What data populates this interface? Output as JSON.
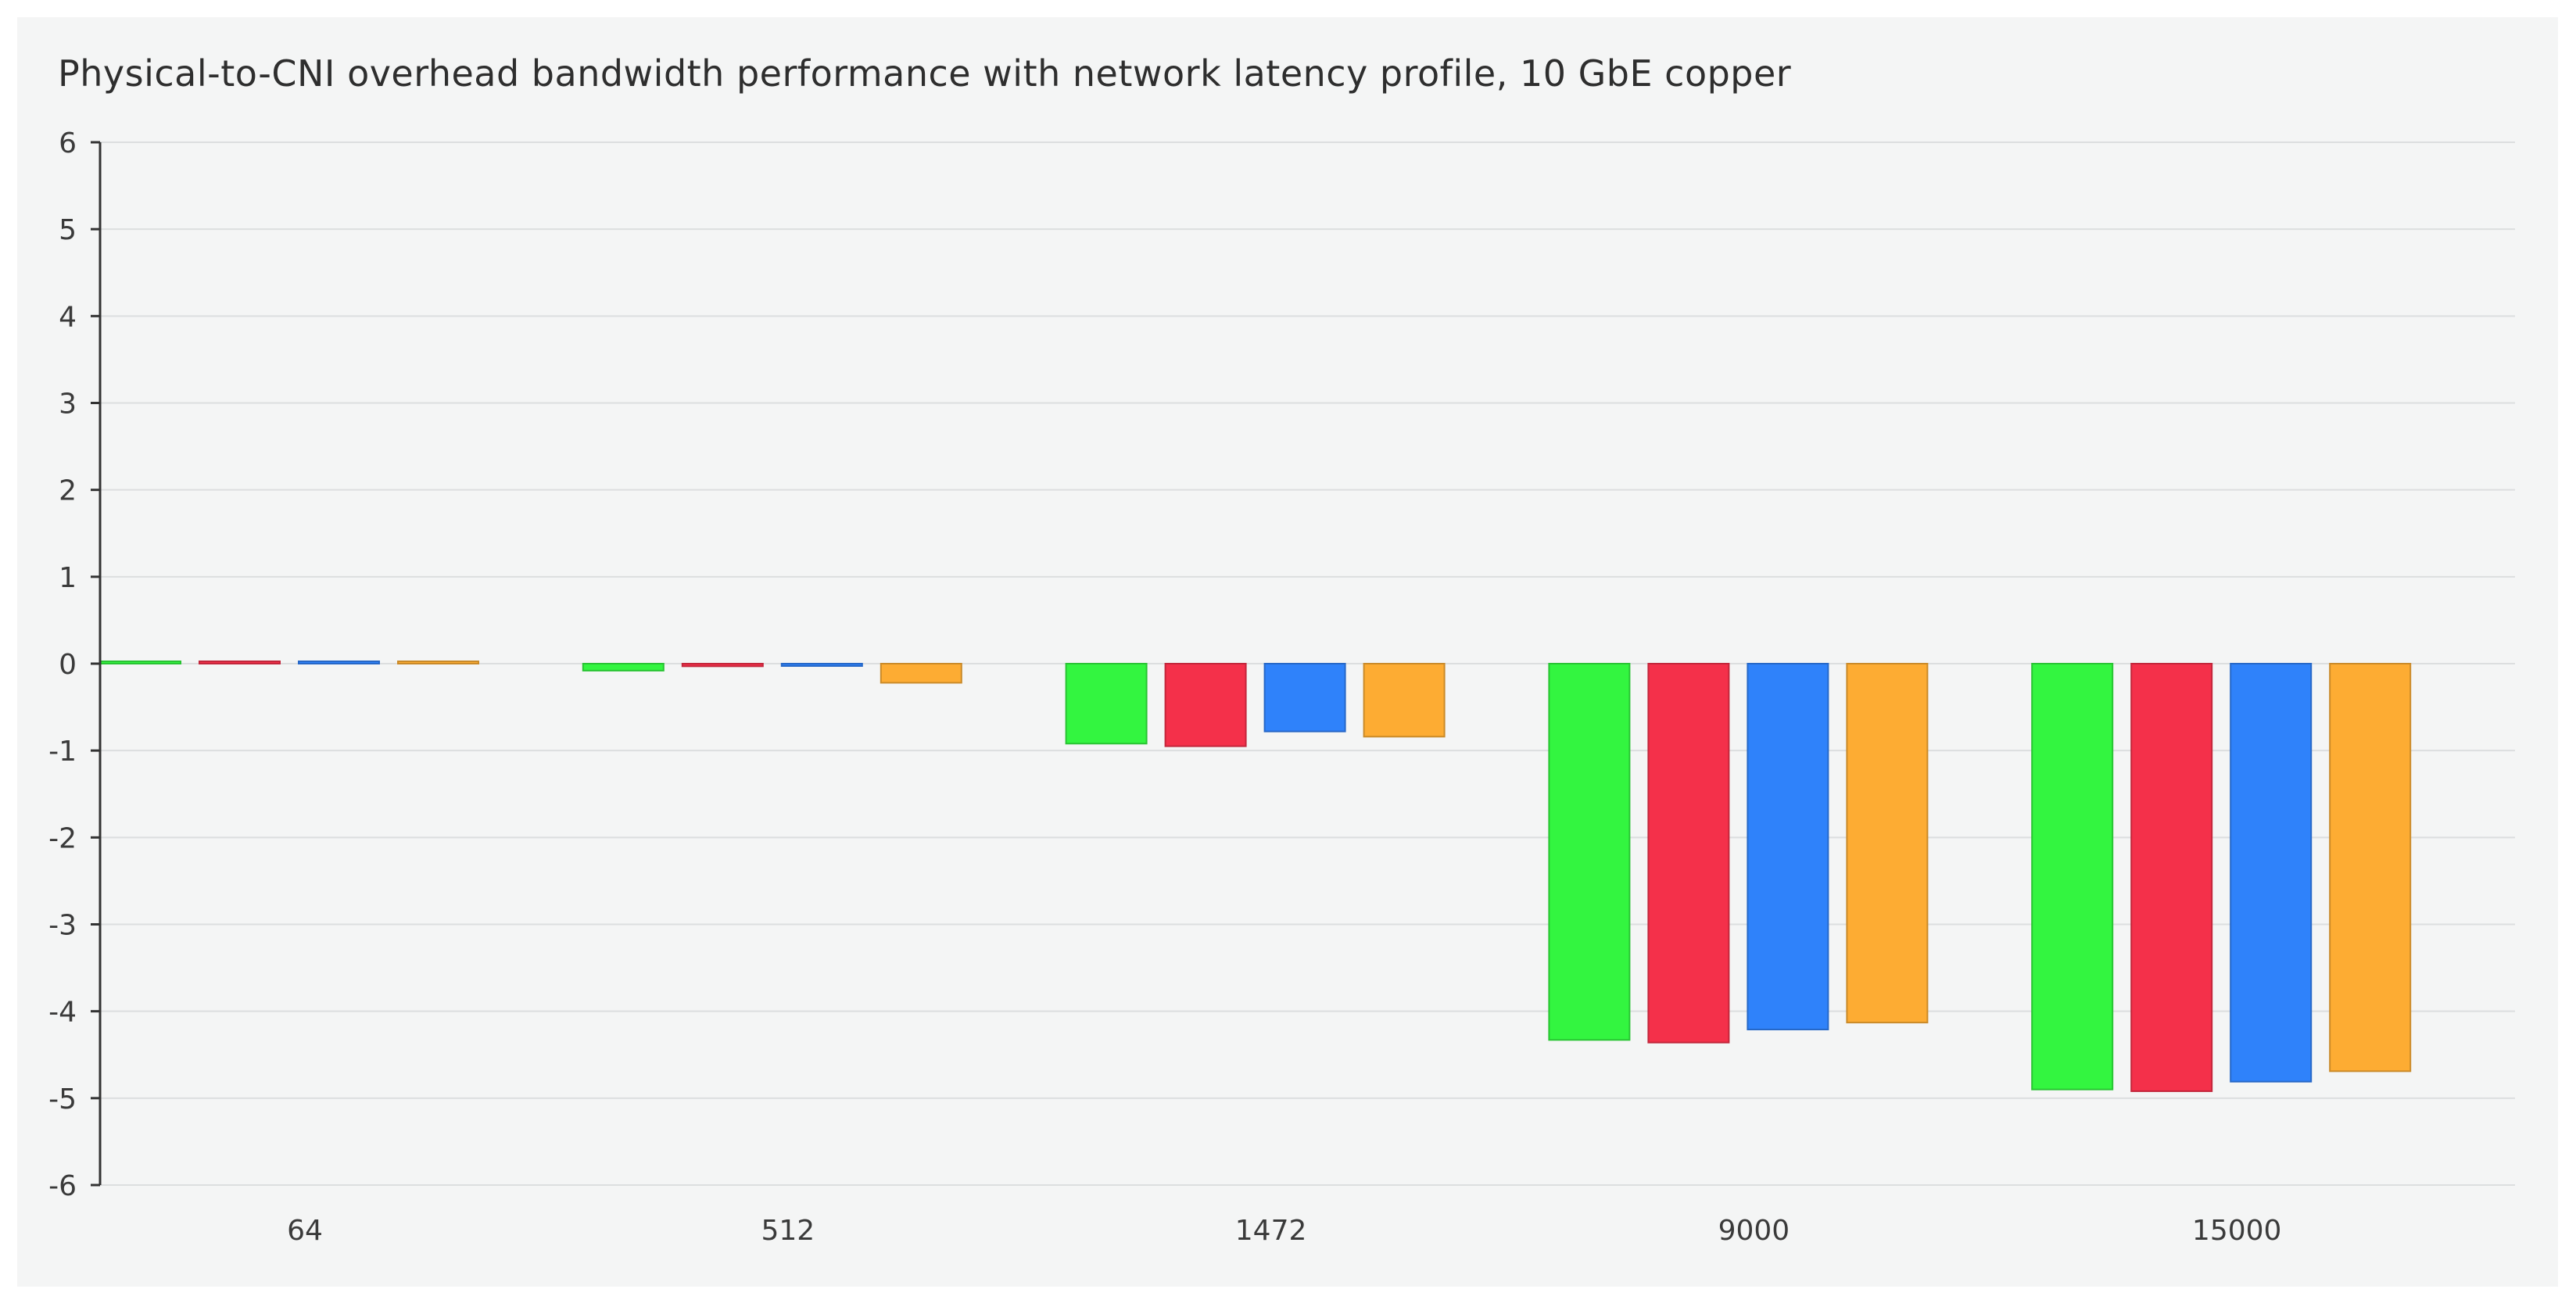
{
  "chart_data": {
    "type": "bar",
    "title": "Physical-to-CNI overhead bandwidth performance with network latency profile, 10 GbE copper",
    "xlabel": "",
    "ylabel": "",
    "ylim": [
      -6,
      6
    ],
    "yticks": [
      "6",
      "5",
      "4",
      "3",
      "2",
      "1",
      "0",
      "-1",
      "-2",
      "-3",
      "-4",
      "-5",
      "-6"
    ],
    "categories": [
      "64",
      "512",
      "1472",
      "9000",
      "15000"
    ],
    "grid": true,
    "legend": "none",
    "series": [
      {
        "color": "#33f540",
        "values": [
          0.02,
          -0.08,
          -0.92,
          -4.33,
          -4.9
        ]
      },
      {
        "color": "#f4304a",
        "values": [
          0.02,
          -0.03,
          -0.95,
          -4.36,
          -4.92
        ]
      },
      {
        "color": "#2f82fa",
        "values": [
          0.02,
          -0.02,
          -0.78,
          -4.21,
          -4.81
        ]
      },
      {
        "color": "#fdac33",
        "values": [
          0.02,
          -0.22,
          -0.84,
          -4.13,
          -4.69
        ]
      }
    ]
  }
}
